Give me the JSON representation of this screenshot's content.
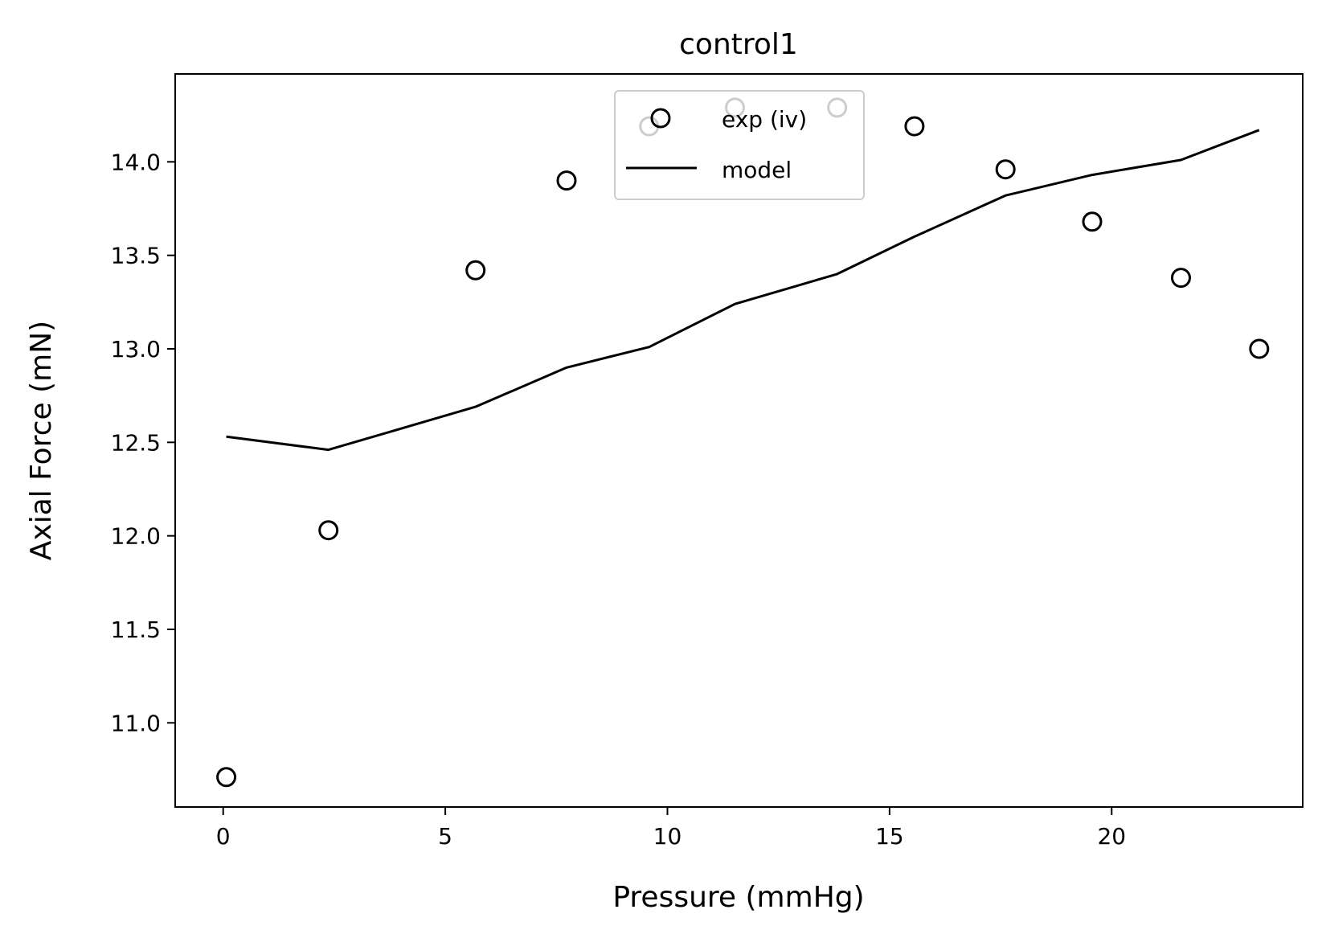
{
  "chart_data": {
    "type": "scatter",
    "title": "control1",
    "xlabel": "Pressure (mmHg)",
    "ylabel": "Axial Force (mN)",
    "xlim": [
      -1.08,
      24.3
    ],
    "ylim": [
      10.55,
      14.47
    ],
    "xticks": [
      0,
      5,
      10,
      15,
      20
    ],
    "xtick_labels": [
      "0",
      "5",
      "10",
      "15",
      "20"
    ],
    "yticks": [
      11.0,
      11.5,
      12.0,
      12.5,
      13.0,
      13.5,
      14.0
    ],
    "ytick_labels": [
      "11.0",
      "11.5",
      "12.0",
      "12.5",
      "13.0",
      "13.5",
      "14.0"
    ],
    "grid": false,
    "legend": {
      "position": "upper center",
      "entries": [
        "exp (iv)",
        "model"
      ]
    },
    "series": [
      {
        "name": "exp (iv)",
        "kind": "scatter",
        "marker": "open-circle",
        "color": "#000000",
        "x": [
          0.07,
          2.37,
          5.68,
          7.73,
          9.59,
          11.52,
          13.82,
          15.56,
          17.61,
          19.56,
          21.56,
          23.32
        ],
        "y": [
          10.71,
          12.03,
          13.42,
          13.9,
          14.19,
          14.29,
          14.29,
          14.19,
          13.96,
          13.68,
          13.38,
          13.0
        ]
      },
      {
        "name": "model",
        "kind": "line",
        "color": "#000000",
        "x": [
          0.07,
          2.37,
          5.68,
          7.73,
          9.59,
          11.52,
          13.82,
          15.56,
          17.61,
          19.56,
          21.56,
          23.32
        ],
        "y": [
          12.53,
          12.46,
          12.69,
          12.9,
          13.01,
          13.24,
          13.4,
          13.6,
          13.82,
          13.93,
          14.01,
          14.17
        ]
      }
    ]
  }
}
